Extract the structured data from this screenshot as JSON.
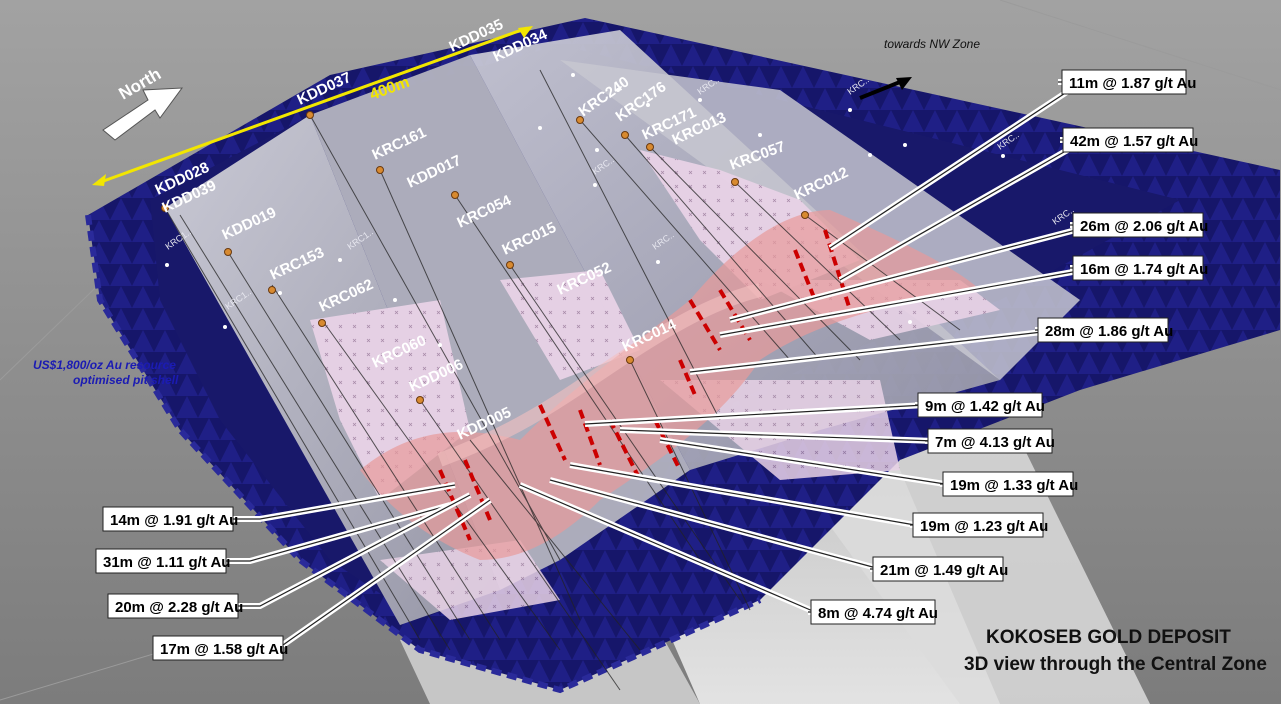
{
  "title": {
    "line1": "KOKOSEB GOLD DEPOSIT",
    "line2": "3D view through the Central Zone"
  },
  "north_label": "North",
  "scale_label": "400m",
  "nw_label": "towards NW Zone",
  "pit_label": {
    "line1": "US$1,800/oz Au resource",
    "line2": "optimised pit shell"
  },
  "colors": {
    "background": "#8d8d8d",
    "pit_shell": "#14145e",
    "section_plane": "#b9b9c4",
    "mineralisation": "#e8a0a0",
    "intercept": "#cc0000",
    "scale_bar": "#f2e600"
  },
  "holes": [
    {
      "id": "KDD035"
    },
    {
      "id": "KDD034"
    },
    {
      "id": "KDD037"
    },
    {
      "id": "KRC240"
    },
    {
      "id": "KRC176"
    },
    {
      "id": "KRC171"
    },
    {
      "id": "KRC161"
    },
    {
      "id": "KDD017"
    },
    {
      "id": "KRC013"
    },
    {
      "id": "KRC057"
    },
    {
      "id": "KRC012"
    },
    {
      "id": "KDD028"
    },
    {
      "id": "KDD039"
    },
    {
      "id": "KDD019"
    },
    {
      "id": "KRC054"
    },
    {
      "id": "KRC015"
    },
    {
      "id": "KRC153"
    },
    {
      "id": "KRC052"
    },
    {
      "id": "KRC062"
    },
    {
      "id": "KRC014"
    },
    {
      "id": "KRC060"
    },
    {
      "id": "KDD006"
    },
    {
      "id": "KDD005"
    }
  ],
  "intercepts": [
    {
      "label": "11m @ 1.87 g/t Au"
    },
    {
      "label": "42m @ 1.57 g/t Au"
    },
    {
      "label": "26m @ 2.06 g/t Au"
    },
    {
      "label": "16m @ 1.74 g/t Au"
    },
    {
      "label": "28m @ 1.86 g/t Au"
    },
    {
      "label": "9m @ 1.42 g/t Au"
    },
    {
      "label": "7m @ 4.13 g/t Au"
    },
    {
      "label": "19m @ 1.33 g/t Au"
    },
    {
      "label": "19m @ 1.23 g/t Au"
    },
    {
      "label": "21m @ 1.49 g/t Au"
    },
    {
      "label": "8m @ 4.74 g/t Au"
    },
    {
      "label": "14m @ 1.91 g/t Au"
    },
    {
      "label": "31m @ 1.11 g/t Au"
    },
    {
      "label": "20m @ 2.28 g/t Au"
    },
    {
      "label": "17m @ 1.58 g/t Au"
    }
  ]
}
